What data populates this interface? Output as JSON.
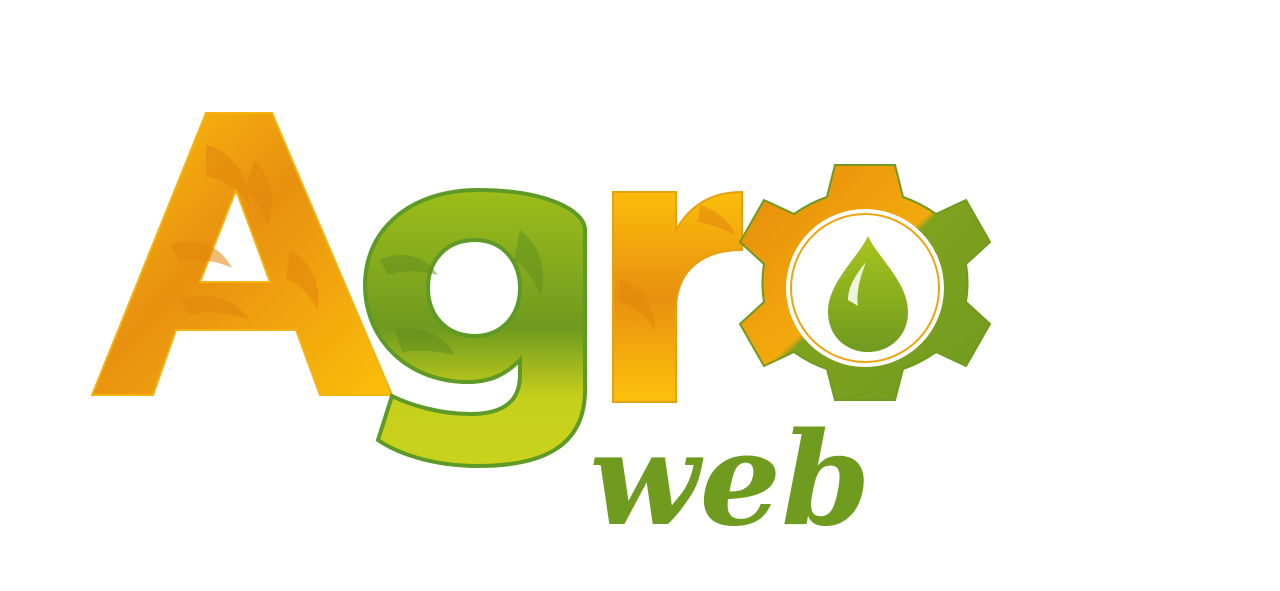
{
  "logo": {
    "wordmark": "Agro",
    "subword": "web",
    "colors": {
      "orange_light": "#fbbf0a",
      "orange_dark": "#e58a0b",
      "green_light": "#c6cf1b",
      "green_dark": "#6f9a1f",
      "green_text": "#6f9b1e",
      "outline_green": "#5e9a26",
      "white": "#ffffff"
    },
    "icons": [
      "gear-icon",
      "drop-icon",
      "leaf-pattern"
    ]
  }
}
